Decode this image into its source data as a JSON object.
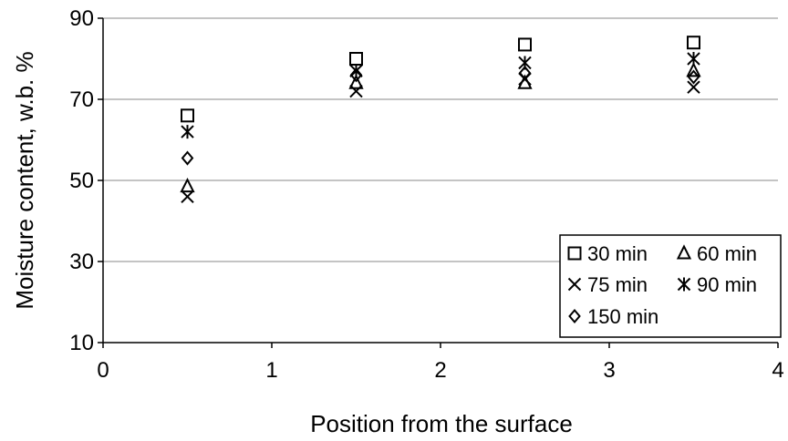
{
  "chart_data": {
    "type": "scatter",
    "title": "",
    "xlabel": "Position from the surface",
    "ylabel": "Moisture content, w.b. %",
    "xlim": [
      0,
      4
    ],
    "ylim": [
      10,
      90
    ],
    "xticks": [
      0,
      1,
      2,
      3,
      4
    ],
    "yticks": [
      10,
      30,
      50,
      70,
      90
    ],
    "grid": "horizontal",
    "legend_position": "bottom-right",
    "series": [
      {
        "name": "30 min",
        "marker": "square",
        "x": [
          0.5,
          1.5,
          2.5,
          3.5
        ],
        "y": [
          66,
          80,
          83.5,
          84
        ]
      },
      {
        "name": "60 min",
        "marker": "triangle",
        "x": [
          0.5,
          1.5,
          2.5,
          3.5
        ],
        "y": [
          48.5,
          74,
          74,
          77
        ]
      },
      {
        "name": "75 min",
        "marker": "x",
        "x": [
          0.5,
          1.5,
          2.5,
          3.5
        ],
        "y": [
          46,
          72,
          75,
          73
        ]
      },
      {
        "name": "90 min",
        "marker": "asterisk",
        "x": [
          0.5,
          1.5,
          2.5,
          3.5
        ],
        "y": [
          62,
          77,
          79,
          80
        ]
      },
      {
        "name": "150 min",
        "marker": "diamond",
        "x": [
          0.5,
          1.5,
          2.5,
          3.5
        ],
        "y": [
          55.5,
          76,
          76.5,
          75.5
        ]
      }
    ]
  }
}
